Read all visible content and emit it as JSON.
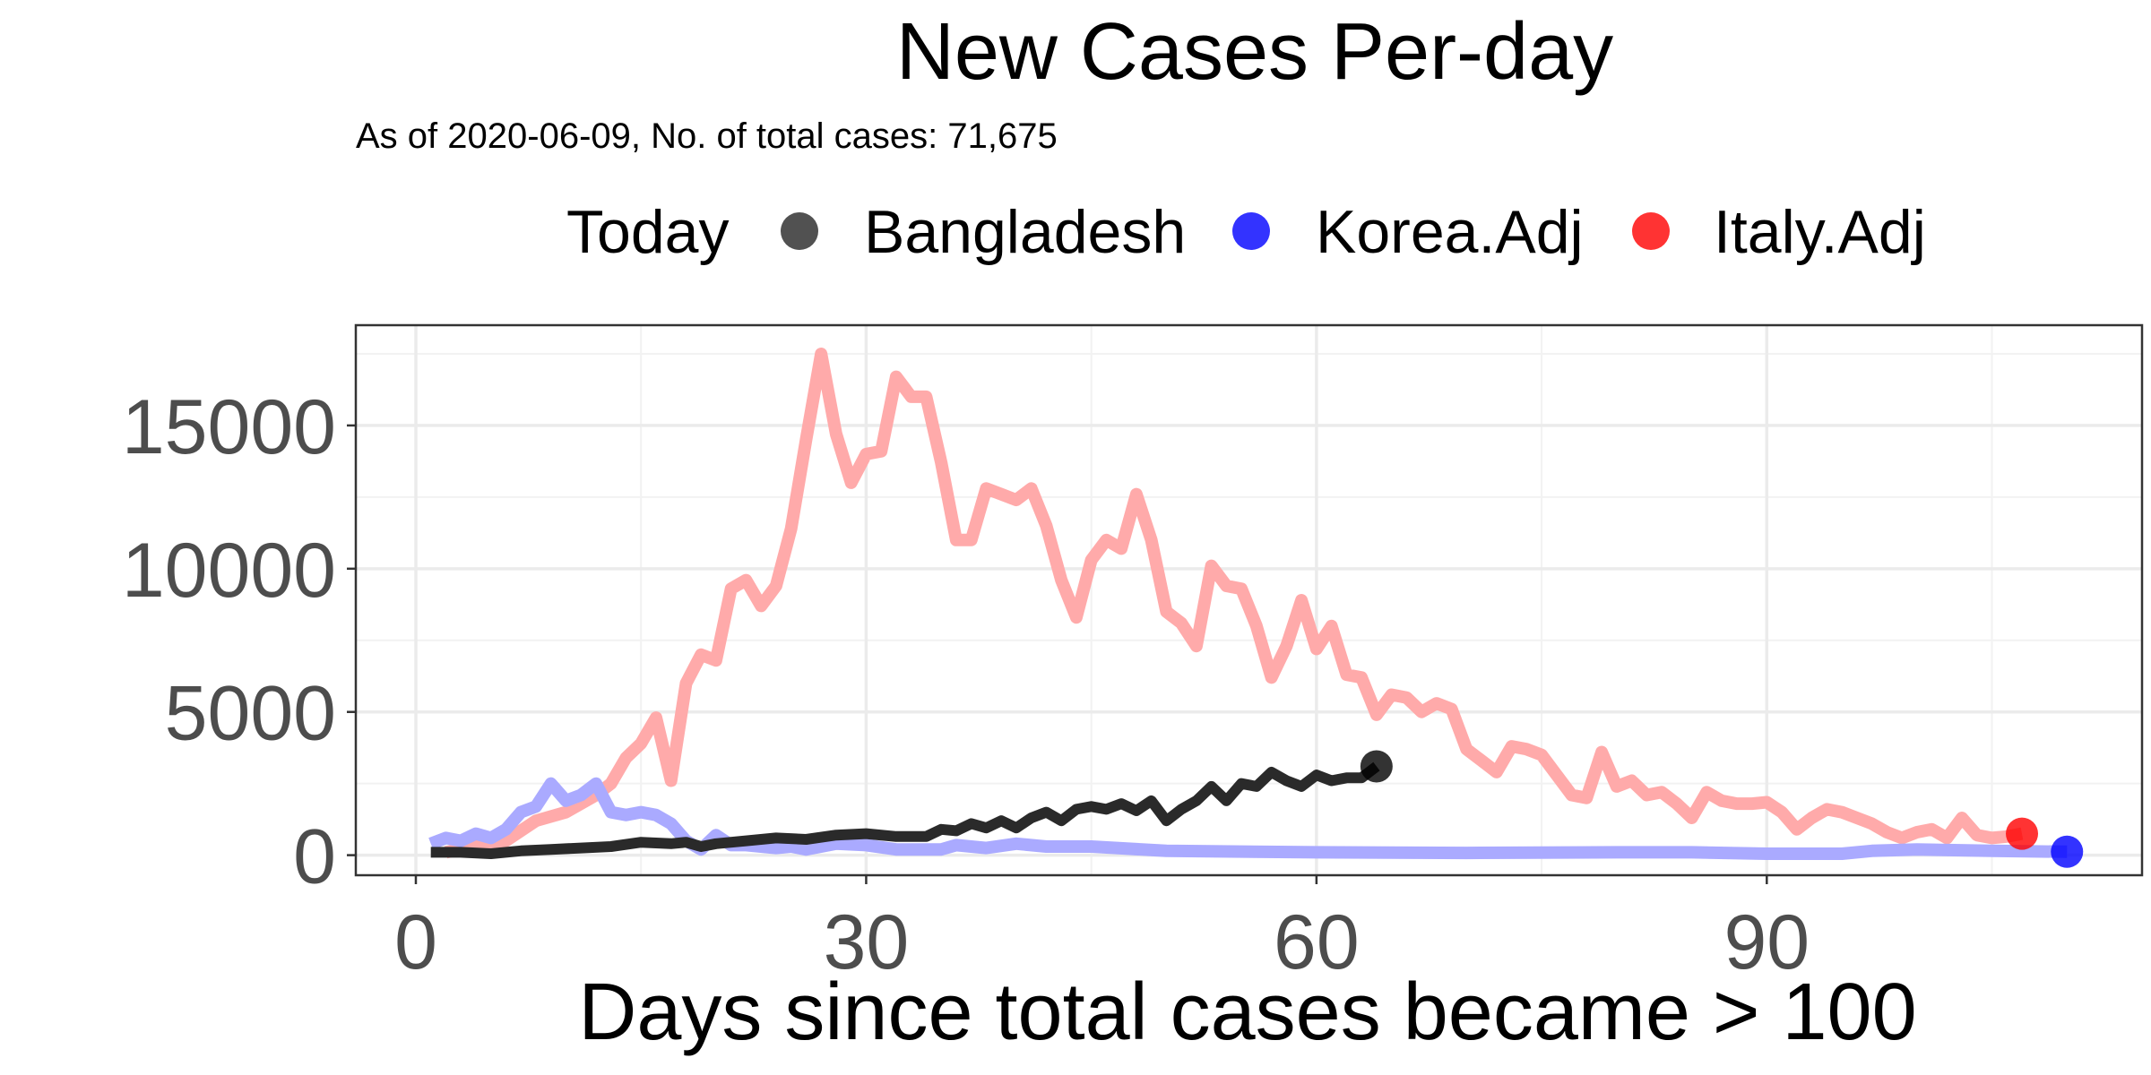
{
  "chart_data": {
    "type": "line",
    "title": "New Cases Per-day",
    "subtitle": "As of 2020-06-09, No. of total cases: 71,675",
    "xlabel": "Days since total cases became > 100",
    "ylabel": "",
    "xlim": [
      -4,
      115
    ],
    "ylim": [
      -700,
      18500
    ],
    "x_ticks": [
      0,
      30,
      60,
      90
    ],
    "y_ticks": [
      0,
      5000,
      10000,
      15000
    ],
    "grid": true,
    "legend": {
      "position": "top",
      "title": "Today",
      "entries": [
        "Bangladesh",
        "Korea.Adj",
        "Italy.Adj"
      ]
    },
    "series": [
      {
        "name": "Italy.Adj",
        "color": "#ff0000",
        "line_color": "#ffaaaa",
        "points": [
          [
            2,
            100
          ],
          [
            4,
            350
          ],
          [
            6,
            500
          ],
          [
            8,
            1200
          ],
          [
            10,
            1500
          ],
          [
            12,
            2100
          ],
          [
            13,
            2500
          ],
          [
            14,
            3400
          ],
          [
            15,
            3900
          ],
          [
            16,
            4800
          ],
          [
            17,
            2600
          ],
          [
            18,
            6000
          ],
          [
            19,
            7000
          ],
          [
            20,
            6800
          ],
          [
            21,
            9300
          ],
          [
            22,
            9600
          ],
          [
            23,
            8700
          ],
          [
            24,
            9400
          ],
          [
            25,
            11400
          ],
          [
            26,
            14500
          ],
          [
            27,
            17500
          ],
          [
            28,
            14700
          ],
          [
            29,
            13000
          ],
          [
            30,
            14000
          ],
          [
            31,
            14100
          ],
          [
            32,
            16700
          ],
          [
            33,
            16000
          ],
          [
            34,
            16000
          ],
          [
            35,
            13700
          ],
          [
            36,
            11000
          ],
          [
            37,
            11000
          ],
          [
            38,
            12800
          ],
          [
            39,
            12600
          ],
          [
            40,
            12400
          ],
          [
            41,
            12800
          ],
          [
            42,
            11500
          ],
          [
            43,
            9600
          ],
          [
            44,
            8300
          ],
          [
            45,
            10300
          ],
          [
            46,
            11000
          ],
          [
            47,
            10700
          ],
          [
            48,
            12600
          ],
          [
            49,
            11000
          ],
          [
            50,
            8500
          ],
          [
            51,
            8100
          ],
          [
            52,
            7300
          ],
          [
            53,
            10100
          ],
          [
            54,
            9400
          ],
          [
            55,
            9300
          ],
          [
            56,
            8000
          ],
          [
            57,
            6200
          ],
          [
            58,
            7300
          ],
          [
            59,
            8900
          ],
          [
            60,
            7200
          ],
          [
            61,
            8000
          ],
          [
            62,
            6300
          ],
          [
            63,
            6200
          ],
          [
            64,
            4900
          ],
          [
            65,
            5600
          ],
          [
            66,
            5500
          ],
          [
            67,
            5000
          ],
          [
            68,
            5300
          ],
          [
            69,
            5100
          ],
          [
            70,
            3700
          ],
          [
            71,
            3300
          ],
          [
            72,
            2900
          ],
          [
            73,
            3800
          ],
          [
            74,
            3700
          ],
          [
            75,
            3500
          ],
          [
            76,
            2800
          ],
          [
            77,
            2100
          ],
          [
            78,
            2000
          ],
          [
            79,
            3600
          ],
          [
            80,
            2400
          ],
          [
            81,
            2600
          ],
          [
            82,
            2100
          ],
          [
            83,
            2200
          ],
          [
            84,
            1800
          ],
          [
            85,
            1300
          ],
          [
            86,
            2200
          ],
          [
            87,
            1900
          ],
          [
            88,
            1800
          ],
          [
            89,
            1800
          ],
          [
            90,
            1850
          ],
          [
            91,
            1500
          ],
          [
            92,
            900
          ],
          [
            93,
            1300
          ],
          [
            94,
            1600
          ],
          [
            95,
            1500
          ],
          [
            96,
            1300
          ],
          [
            97,
            1100
          ],
          [
            98,
            800
          ],
          [
            99,
            600
          ],
          [
            100,
            800
          ],
          [
            101,
            900
          ],
          [
            102,
            600
          ],
          [
            103,
            1300
          ],
          [
            104,
            700
          ],
          [
            105,
            600
          ],
          [
            106,
            650
          ],
          [
            107,
            750
          ]
        ]
      },
      {
        "name": "Korea.Adj",
        "color": "#0000ff",
        "line_color": "#aaaaff",
        "points": [
          [
            1,
            400
          ],
          [
            2,
            600
          ],
          [
            3,
            500
          ],
          [
            4,
            750
          ],
          [
            5,
            600
          ],
          [
            6,
            900
          ],
          [
            7,
            1500
          ],
          [
            8,
            1700
          ],
          [
            9,
            2500
          ],
          [
            10,
            1900
          ],
          [
            11,
            2100
          ],
          [
            12,
            2500
          ],
          [
            13,
            1500
          ],
          [
            14,
            1400
          ],
          [
            15,
            1500
          ],
          [
            16,
            1400
          ],
          [
            17,
            1100
          ],
          [
            18,
            500
          ],
          [
            19,
            200
          ],
          [
            20,
            700
          ],
          [
            21,
            350
          ],
          [
            22,
            350
          ],
          [
            23,
            300
          ],
          [
            24,
            250
          ],
          [
            25,
            300
          ],
          [
            26,
            200
          ],
          [
            27,
            300
          ],
          [
            28,
            400
          ],
          [
            30,
            350
          ],
          [
            32,
            200
          ],
          [
            35,
            200
          ],
          [
            36,
            350
          ],
          [
            38,
            250
          ],
          [
            40,
            400
          ],
          [
            42,
            300
          ],
          [
            45,
            300
          ],
          [
            50,
            150
          ],
          [
            60,
            100
          ],
          [
            70,
            80
          ],
          [
            80,
            100
          ],
          [
            85,
            100
          ],
          [
            90,
            50
          ],
          [
            95,
            50
          ],
          [
            97,
            150
          ],
          [
            100,
            200
          ],
          [
            105,
            150
          ],
          [
            110,
            120
          ]
        ]
      },
      {
        "name": "Bangladesh",
        "color": "#000000",
        "line_color": "#2a2a2a",
        "points": [
          [
            1,
            100
          ],
          [
            3,
            100
          ],
          [
            5,
            50
          ],
          [
            7,
            150
          ],
          [
            9,
            200
          ],
          [
            11,
            250
          ],
          [
            13,
            300
          ],
          [
            15,
            450
          ],
          [
            17,
            400
          ],
          [
            18,
            450
          ],
          [
            19,
            300
          ],
          [
            20,
            400
          ],
          [
            22,
            500
          ],
          [
            24,
            600
          ],
          [
            26,
            550
          ],
          [
            28,
            700
          ],
          [
            30,
            750
          ],
          [
            32,
            650
          ],
          [
            34,
            650
          ],
          [
            35,
            900
          ],
          [
            36,
            850
          ],
          [
            37,
            1100
          ],
          [
            38,
            950
          ],
          [
            39,
            1200
          ],
          [
            40,
            950
          ],
          [
            41,
            1300
          ],
          [
            42,
            1500
          ],
          [
            43,
            1200
          ],
          [
            44,
            1600
          ],
          [
            45,
            1700
          ],
          [
            46,
            1600
          ],
          [
            47,
            1800
          ],
          [
            48,
            1550
          ],
          [
            49,
            1900
          ],
          [
            50,
            1200
          ],
          [
            51,
            1600
          ],
          [
            52,
            1900
          ],
          [
            53,
            2400
          ],
          [
            54,
            1900
          ],
          [
            55,
            2500
          ],
          [
            56,
            2400
          ],
          [
            57,
            2900
          ],
          [
            58,
            2600
          ],
          [
            59,
            2400
          ],
          [
            60,
            2800
          ],
          [
            61,
            2600
          ],
          [
            62,
            2700
          ],
          [
            63,
            2700
          ],
          [
            64,
            3100
          ]
        ]
      }
    ],
    "today_points": [
      {
        "series": "Italy.Adj",
        "x": 107,
        "y": 750,
        "color": "#ff0000"
      },
      {
        "series": "Korea.Adj",
        "x": 110,
        "y": 120,
        "color": "#0000ff"
      },
      {
        "series": "Bangladesh",
        "x": 64,
        "y": 3100,
        "color": "#000000"
      }
    ]
  }
}
